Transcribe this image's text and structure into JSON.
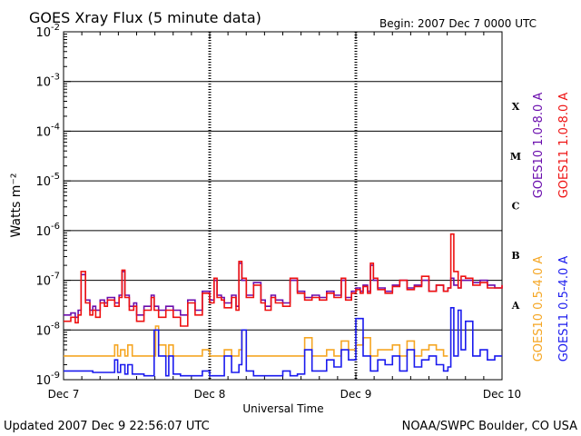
{
  "header": {
    "title": "GOES Xray Flux (5 minute data)",
    "begin": "Begin:  2007 Dec 7 0000 UTC"
  },
  "footer": {
    "updated": "Updated 2007 Dec  9 22:56:07 UTC",
    "credit": "NOAA/SWPC Boulder, CO USA"
  },
  "chart_data": {
    "type": "line",
    "title": "GOES Xray Flux (5 minute data)",
    "xlabel": "Universal Time",
    "ylabel": "Watts m⁻²",
    "log_scale_y": true,
    "ylim": [
      1e-09,
      0.01
    ],
    "xlim": [
      0,
      3
    ],
    "x_ticks": [
      {
        "x": 0,
        "label": "Dec 7"
      },
      {
        "x": 1,
        "label": "Dec 8"
      },
      {
        "x": 2,
        "label": "Dec 9"
      },
      {
        "x": 3,
        "label": "Dec 10"
      }
    ],
    "y_tick_exponents": [
      -9,
      -8,
      -7,
      -6,
      -5,
      -4,
      -3,
      -2
    ],
    "flare_classes": [
      {
        "label": "A",
        "exp": -8
      },
      {
        "label": "B",
        "exp": -7
      },
      {
        "label": "C",
        "exp": -6
      },
      {
        "label": "M",
        "exp": -5
      },
      {
        "label": "X",
        "exp": -4
      }
    ],
    "grid": true,
    "legend_position": "right",
    "series": [
      {
        "name": "GOES10 1.0-8.0 A",
        "color": "#6a0dad",
        "x": [
          0.0,
          0.05,
          0.08,
          0.1,
          0.12,
          0.15,
          0.18,
          0.2,
          0.22,
          0.25,
          0.28,
          0.3,
          0.35,
          0.38,
          0.4,
          0.42,
          0.45,
          0.48,
          0.5,
          0.55,
          0.6,
          0.62,
          0.65,
          0.7,
          0.75,
          0.8,
          0.85,
          0.9,
          0.95,
          1.0,
          1.03,
          1.05,
          1.08,
          1.1,
          1.15,
          1.18,
          1.2,
          1.22,
          1.25,
          1.3,
          1.35,
          1.38,
          1.42,
          1.45,
          1.5,
          1.55,
          1.6,
          1.65,
          1.7,
          1.75,
          1.8,
          1.85,
          1.9,
          1.93,
          1.97,
          2.0,
          2.03,
          2.05,
          2.08,
          2.1,
          2.12,
          2.15,
          2.2,
          2.25,
          2.3,
          2.35,
          2.4,
          2.45,
          2.5,
          2.55,
          2.6,
          2.63,
          2.65,
          2.67,
          2.7,
          2.72,
          2.75,
          2.8,
          2.85,
          2.9,
          2.95,
          3.0
        ],
        "y": [
          2e-08,
          2.2e-08,
          1.8e-08,
          2.5e-08,
          1.3e-07,
          4e-08,
          2.5e-08,
          3e-08,
          2.5e-08,
          4e-08,
          3.5e-08,
          4.5e-08,
          3.5e-08,
          5e-08,
          1.5e-07,
          5e-08,
          3e-08,
          3.5e-08,
          2e-08,
          3e-08,
          5e-08,
          3e-08,
          2.5e-08,
          3e-08,
          2.5e-08,
          2e-08,
          4e-08,
          2.5e-08,
          6e-08,
          4e-08,
          1e-07,
          5e-08,
          4.5e-08,
          3.5e-08,
          5e-08,
          3e-08,
          2.2e-07,
          1e-07,
          5e-08,
          9e-08,
          4e-08,
          3e-08,
          5e-08,
          4e-08,
          3.5e-08,
          1e-07,
          6e-08,
          4.5e-08,
          5e-08,
          4.5e-08,
          6e-08,
          5e-08,
          1e-07,
          4.5e-08,
          6e-08,
          7e-08,
          6e-08,
          8e-08,
          6e-08,
          2e-07,
          1e-07,
          7e-08,
          6e-08,
          8e-08,
          1e-07,
          7e-08,
          8e-08,
          1e-07,
          6e-08,
          8e-08,
          6e-08,
          7e-08,
          1.1e-07,
          8e-08,
          7e-08,
          1e-07,
          1e-07,
          9e-08,
          1e-07,
          8e-08,
          7e-08,
          8e-08
        ]
      },
      {
        "name": "GOES11 1.0-8.0 A",
        "color": "#ee1111",
        "x": [
          0.0,
          0.05,
          0.08,
          0.1,
          0.12,
          0.15,
          0.18,
          0.2,
          0.22,
          0.25,
          0.28,
          0.3,
          0.35,
          0.38,
          0.4,
          0.42,
          0.45,
          0.48,
          0.5,
          0.55,
          0.6,
          0.62,
          0.65,
          0.7,
          0.75,
          0.8,
          0.85,
          0.9,
          0.95,
          1.0,
          1.03,
          1.05,
          1.08,
          1.1,
          1.15,
          1.18,
          1.2,
          1.22,
          1.25,
          1.3,
          1.35,
          1.38,
          1.42,
          1.45,
          1.5,
          1.55,
          1.6,
          1.65,
          1.7,
          1.75,
          1.8,
          1.85,
          1.9,
          1.93,
          1.97,
          2.0,
          2.03,
          2.05,
          2.08,
          2.1,
          2.12,
          2.15,
          2.2,
          2.25,
          2.3,
          2.35,
          2.4,
          2.45,
          2.5,
          2.55,
          2.6,
          2.63,
          2.65,
          2.67,
          2.7,
          2.72,
          2.75,
          2.8,
          2.85,
          2.9,
          2.95,
          3.0
        ],
        "y": [
          1.5e-08,
          1.8e-08,
          1.4e-08,
          2e-08,
          1.5e-07,
          3.5e-08,
          2e-08,
          2.5e-08,
          1.8e-08,
          3.5e-08,
          3e-08,
          4e-08,
          3e-08,
          4.5e-08,
          1.6e-07,
          4.5e-08,
          2.5e-08,
          3e-08,
          1.5e-08,
          2.5e-08,
          4.5e-08,
          2.5e-08,
          1.8e-08,
          2.5e-08,
          1.8e-08,
          1.2e-08,
          3.5e-08,
          2e-08,
          5.5e-08,
          3.5e-08,
          1.1e-07,
          4.5e-08,
          4e-08,
          2.8e-08,
          4.5e-08,
          2.5e-08,
          2.4e-07,
          1.1e-07,
          4.5e-08,
          8e-08,
          3.5e-08,
          2.5e-08,
          4.5e-08,
          3.5e-08,
          3e-08,
          1.1e-07,
          5.5e-08,
          4e-08,
          4.5e-08,
          4e-08,
          5.5e-08,
          4.5e-08,
          1.1e-07,
          4e-08,
          5.5e-08,
          6.5e-08,
          5.5e-08,
          7.5e-08,
          5.5e-08,
          2.2e-07,
          1.1e-07,
          6.5e-08,
          5.5e-08,
          7.5e-08,
          1e-07,
          6.5e-08,
          7.5e-08,
          1.2e-07,
          6e-08,
          8e-08,
          6e-08,
          7e-08,
          8.5e-07,
          1.5e-07,
          7e-08,
          1.2e-07,
          1.1e-07,
          8e-08,
          9e-08,
          7e-08,
          7e-08,
          8e-08
        ]
      },
      {
        "name": "GOES10 0.5-4.0 A",
        "color": "#f5a623",
        "x": [
          0.0,
          0.3,
          0.35,
          0.37,
          0.39,
          0.42,
          0.44,
          0.47,
          0.5,
          0.55,
          0.6,
          0.63,
          0.65,
          0.7,
          0.72,
          0.75,
          0.8,
          0.85,
          0.9,
          0.95,
          1.0,
          1.05,
          1.1,
          1.15,
          1.2,
          1.22,
          1.25,
          1.3,
          1.35,
          1.4,
          1.45,
          1.5,
          1.55,
          1.6,
          1.65,
          1.7,
          1.75,
          1.8,
          1.85,
          1.9,
          1.95,
          2.0,
          2.05,
          2.1,
          2.15,
          2.2,
          2.25,
          2.3,
          2.35,
          2.4,
          2.45,
          2.5,
          2.55,
          2.6,
          2.63
        ],
        "y": [
          3e-09,
          3e-09,
          5e-09,
          3e-09,
          4e-09,
          3e-09,
          5e-09,
          3e-09,
          3e-09,
          3e-09,
          3e-09,
          1.2e-08,
          5e-09,
          3e-09,
          5e-09,
          3e-09,
          3e-09,
          3e-09,
          3e-09,
          4e-09,
          3e-09,
          3e-09,
          4e-09,
          3e-09,
          4e-09,
          1e-08,
          3e-09,
          3e-09,
          3e-09,
          3e-09,
          3e-09,
          3e-09,
          3e-09,
          3e-09,
          7e-09,
          3e-09,
          3e-09,
          4e-09,
          3e-09,
          6e-09,
          4e-09,
          5e-09,
          7e-09,
          3e-09,
          4e-09,
          4e-09,
          5e-09,
          3e-09,
          6e-09,
          3e-09,
          4e-09,
          5e-09,
          4e-09,
          3e-09,
          3e-09
        ]
      },
      {
        "name": "GOES11 0.5-4.0 A",
        "color": "#1a1aee",
        "x": [
          0.0,
          0.1,
          0.2,
          0.3,
          0.35,
          0.37,
          0.39,
          0.42,
          0.44,
          0.47,
          0.5,
          0.55,
          0.6,
          0.62,
          0.65,
          0.7,
          0.72,
          0.75,
          0.8,
          0.85,
          0.9,
          0.95,
          1.0,
          1.05,
          1.1,
          1.15,
          1.2,
          1.22,
          1.25,
          1.3,
          1.35,
          1.4,
          1.45,
          1.5,
          1.55,
          1.6,
          1.65,
          1.7,
          1.75,
          1.8,
          1.85,
          1.9,
          1.95,
          2.0,
          2.05,
          2.1,
          2.15,
          2.2,
          2.25,
          2.3,
          2.35,
          2.4,
          2.45,
          2.5,
          2.55,
          2.6,
          2.63,
          2.65,
          2.67,
          2.7,
          2.72,
          2.75,
          2.8,
          2.85,
          2.9,
          2.95,
          3.0
        ],
        "y": [
          1.5e-09,
          1.5e-09,
          1.4e-09,
          1.4e-09,
          2.5e-09,
          1.4e-09,
          2e-09,
          1.3e-09,
          2e-09,
          1.3e-09,
          1.3e-09,
          1.2e-09,
          1.2e-09,
          1e-08,
          3e-09,
          1.2e-09,
          3e-09,
          1.3e-09,
          1.2e-09,
          1.2e-09,
          1.2e-09,
          1.5e-09,
          1.2e-09,
          1.2e-09,
          3e-09,
          1.4e-09,
          2e-09,
          1e-08,
          1.5e-09,
          1.2e-09,
          1.2e-09,
          1.2e-09,
          1.2e-09,
          1.5e-09,
          1.2e-09,
          1.3e-09,
          4e-09,
          1.5e-09,
          1.5e-09,
          2.5e-09,
          1.8e-09,
          4e-09,
          2.5e-09,
          1.7e-08,
          3e-09,
          1.5e-09,
          2.5e-09,
          2e-09,
          3e-09,
          1.5e-09,
          4e-09,
          1.8e-09,
          2.5e-09,
          3e-09,
          2e-09,
          1.5e-09,
          1.8e-09,
          2.8e-08,
          3e-09,
          2.5e-08,
          4e-09,
          1.5e-08,
          3e-09,
          4e-09,
          2.5e-09,
          3e-09,
          3e-09
        ]
      }
    ]
  }
}
